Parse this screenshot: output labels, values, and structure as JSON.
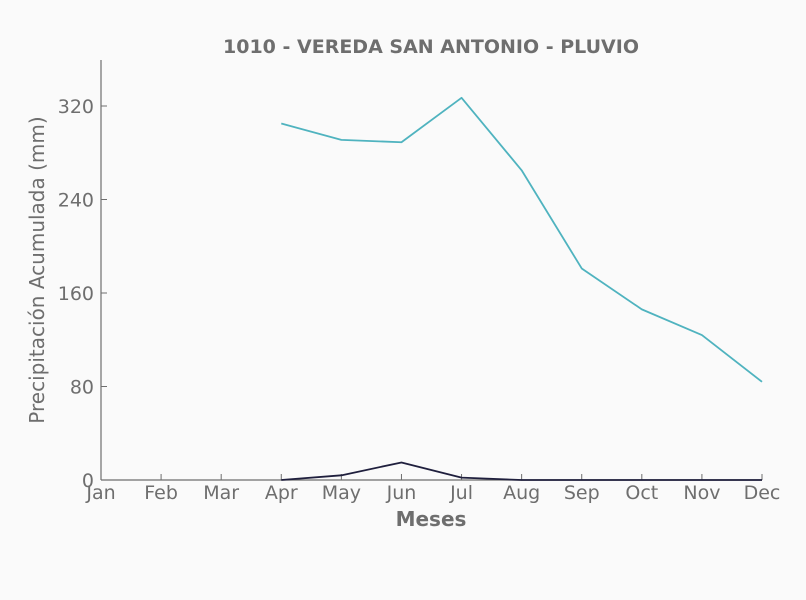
{
  "chart_data": {
    "type": "line",
    "title": "1010 - VEREDA SAN ANTONIO - PLUVIO",
    "xlabel": "Meses",
    "ylabel": "Precipitación Acumulada (mm)",
    "categories": [
      "Jan",
      "Feb",
      "Mar",
      "Apr",
      "May",
      "Jun",
      "Jul",
      "Aug",
      "Sep",
      "Oct",
      "Nov",
      "Dec"
    ],
    "ylim": [
      0,
      360
    ],
    "yticks": [
      0,
      80,
      160,
      240,
      320
    ],
    "grid": false,
    "series": [
      {
        "color": "#4fb3bf",
        "values": [
          null,
          null,
          null,
          305,
          291,
          289,
          327,
          265,
          181,
          146,
          124,
          84
        ]
      },
      {
        "color": "#1f1f3d",
        "values": [
          null,
          null,
          null,
          0,
          4,
          15,
          2,
          0,
          0,
          0,
          0,
          0
        ]
      }
    ]
  }
}
